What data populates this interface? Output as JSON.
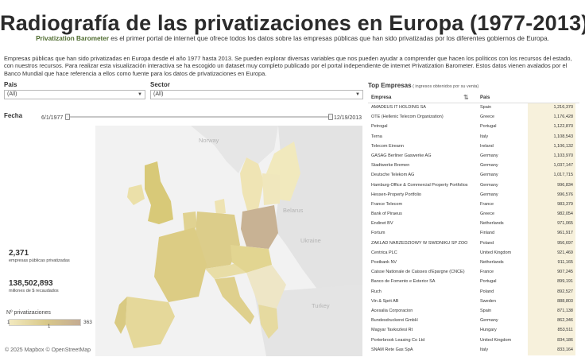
{
  "header": {
    "title": "Radiografía de las privatizaciones en Europa (1977-2013)",
    "brand": "Privatization Barometer",
    "subtitle_rest": " es el primer portal de internet que ofrece todos los datos sobre las empresas públicas que han sido privatizadas por los diferentes gobiernos de Europa."
  },
  "intro": "Empresas públicas que han sido privatizadas en Europa desde el año 1977 hasta 2013. Se pueden explorar diversas variables que nos pueden ayudar a comprender que hacen los políticos con los recursos del estado, con nuestros recursos. Para realizar esta visualización interactiva se ha escogido un dataset muy completo publicado por el portal independiente de internet Privatization Barometer. Estos datos vienen avalados por el Banco Mundial que hace referencia a ellos como fuente para los datos de privatizaciones en Europa.",
  "filters": {
    "country_label": "Pais",
    "country_value": "(All)",
    "sector_label": "Sector",
    "sector_value": "(All)",
    "date_label": "Fecha",
    "date_start": "6/1/1977",
    "date_end": "12/19/2013"
  },
  "map": {
    "labels": {
      "norway": "Norway",
      "belarus": "Belarus",
      "ukraine": "Ukraine",
      "turkey": "Turkey"
    }
  },
  "stats": {
    "count": "2,371",
    "count_caption": "empresas públicas privatizadas",
    "money": "138,502,893",
    "money_caption": "millones de $ recaudados"
  },
  "legend": {
    "title": "Nº privatizaciones",
    "min": "1",
    "max": "363",
    "mark": "1"
  },
  "credits": "© 2025 Mapbox  © OpenStreetMap",
  "top": {
    "title": "Top Empresas",
    "hint": " ( ingresos obtenidos por su venta)",
    "col_company": "Empresa",
    "col_country": "Pais",
    "rows": [
      {
        "name": "AMADEUS IT HOLDING SA",
        "country": "Spain",
        "value": "1,216,370"
      },
      {
        "name": "OTE (Hellenic Telecom Organization)",
        "country": "Greece",
        "value": "1,176,428"
      },
      {
        "name": "Petrogal",
        "country": "Portugal",
        "value": "1,122,870"
      },
      {
        "name": "Terna",
        "country": "Italy",
        "value": "1,108,543"
      },
      {
        "name": "Telecom Eireann",
        "country": "Ireland",
        "value": "1,106,132"
      },
      {
        "name": "GASAG Berliner Gaswerke AG",
        "country": "Germany",
        "value": "1,103,970"
      },
      {
        "name": "Stadtwerke Bremen",
        "country": "Germany",
        "value": "1,037,147"
      },
      {
        "name": "Deutsche Telekom AG",
        "country": "Germany",
        "value": "1,017,715"
      },
      {
        "name": "Hamburg-Office & Commercial Property Portfolios",
        "country": "Germany",
        "value": "996,834"
      },
      {
        "name": "Hessen-Property Portfolio",
        "country": "Germany",
        "value": "996,576"
      },
      {
        "name": "France Telecom",
        "country": "France",
        "value": "983,379"
      },
      {
        "name": "Bank of Piraeus",
        "country": "Greece",
        "value": "982,054"
      },
      {
        "name": "Endinet BV",
        "country": "Netherlands",
        "value": "971,065"
      },
      {
        "name": "Fortum",
        "country": "Finland",
        "value": "961,917"
      },
      {
        "name": "ZAKLAD NARZEDZIOWY W SWIDNIKU SP ZOO",
        "country": "Poland",
        "value": "956,697"
      },
      {
        "name": "Centrica PLC",
        "country": "United Kingdom",
        "value": "921,469"
      },
      {
        "name": "Postbank NV",
        "country": "Netherlands",
        "value": "911,165"
      },
      {
        "name": "Caisse Nationale de Caisses d'Epargne (CNCE)",
        "country": "France",
        "value": "907,245"
      },
      {
        "name": "Banco de Fomento e Exterior SA",
        "country": "Portugal",
        "value": "899,191"
      },
      {
        "name": "Ruch",
        "country": "Poland",
        "value": "892,527"
      },
      {
        "name": "Vin & Sprit AB",
        "country": "Sweden",
        "value": "888,803"
      },
      {
        "name": "Acesalia Corporacion",
        "country": "Spain",
        "value": "871,138"
      },
      {
        "name": "Bundesdruckerei GmbH",
        "country": "Germany",
        "value": "862,346"
      },
      {
        "name": "Magyar Tavkozlesi Rt",
        "country": "Hungary",
        "value": "853,511"
      },
      {
        "name": "Porterbrook Leasing Co Ltd",
        "country": "United Kingdom",
        "value": "834,186"
      },
      {
        "name": "SNAM Rete Gas SpA",
        "country": "Italy",
        "value": "833,164"
      }
    ]
  }
}
